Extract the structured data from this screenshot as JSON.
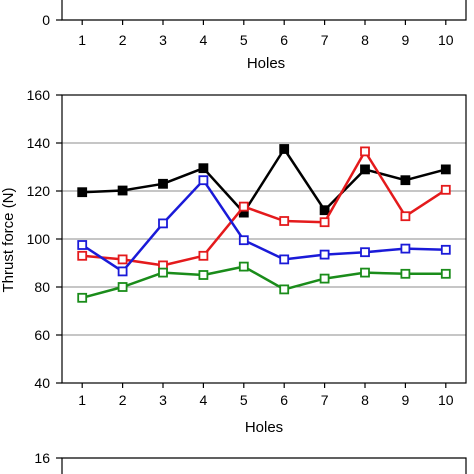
{
  "chart_data": [
    {
      "type": "line",
      "partial": true,
      "xlabel": "Holes",
      "ylabel": "",
      "x": [
        1,
        2,
        3,
        4,
        5,
        6,
        7,
        8,
        9,
        10
      ],
      "x_tick_labels": [
        "1",
        "2",
        "3",
        "4",
        "5",
        "6",
        "7",
        "8",
        "9",
        "10"
      ],
      "y_tick_labels": [
        "0"
      ],
      "xlim": [
        0.5,
        10.5
      ],
      "series": []
    },
    {
      "type": "line",
      "title": "",
      "xlabel": "Holes",
      "ylabel": "Thrust force (N)",
      "x": [
        1,
        2,
        3,
        4,
        5,
        6,
        7,
        8,
        9,
        10
      ],
      "x_tick_labels": [
        "1",
        "2",
        "3",
        "4",
        "5",
        "6",
        "7",
        "8",
        "9",
        "10"
      ],
      "y_tick_labels": [
        "40",
        "60",
        "80",
        "100",
        "120",
        "140",
        "160"
      ],
      "y_ticks": [
        40,
        60,
        80,
        100,
        120,
        140,
        160
      ],
      "ylim": [
        40,
        160
      ],
      "xlim": [
        0.5,
        10.5
      ],
      "grid": "horizontal",
      "series": [
        {
          "color": "#000000",
          "marker": "filled-square",
          "values": [
            119.5,
            120.2,
            123,
            129.5,
            111,
            137.5,
            112,
            129,
            124.5,
            129
          ]
        },
        {
          "color": "#e41a1c",
          "marker": "open-square",
          "values": [
            93,
            91.5,
            89,
            93,
            113.5,
            107.5,
            107,
            136.5,
            109.5,
            120.5
          ]
        },
        {
          "color": "#1a1ad8",
          "marker": "open-square",
          "values": [
            97.5,
            86.5,
            106.5,
            124.5,
            99.5,
            91.5,
            93.5,
            94.5,
            96,
            95.5
          ]
        },
        {
          "color": "#1a8c1a",
          "marker": "open-square",
          "values": [
            75.5,
            80,
            86,
            85,
            88.5,
            79,
            83.5,
            86,
            85.5,
            85.5
          ]
        }
      ]
    },
    {
      "type": "line",
      "partial": true,
      "y_tick_labels": [
        "16"
      ],
      "series": []
    }
  ]
}
